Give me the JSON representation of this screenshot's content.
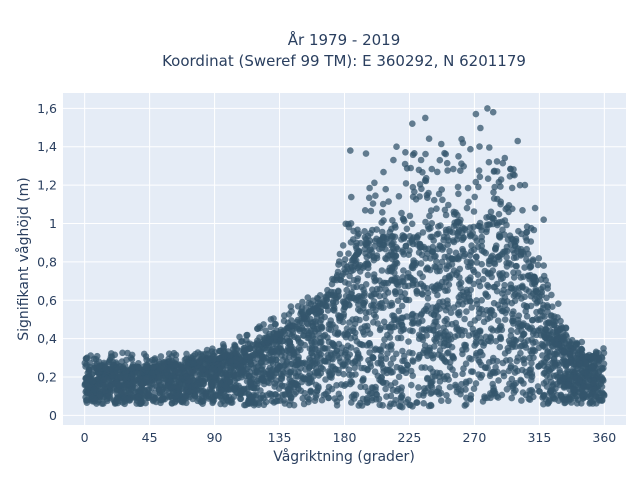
{
  "chart_data": {
    "type": "scatter",
    "title_line1": "År 1979 - 2019",
    "title_line2": "Koordinat (Sweref 99 TM): E 360292, N 6201179",
    "xlabel": "Vågriktning (grader)",
    "ylabel": "Signifikant våghöjd (m)",
    "xlim": [
      -15,
      375
    ],
    "ylim": [
      -0.05,
      1.68
    ],
    "x_ticks": [
      0,
      45,
      90,
      135,
      180,
      225,
      270,
      315,
      360
    ],
    "y_ticks": [
      0,
      0.2,
      0.4,
      0.6,
      0.8,
      1.0,
      1.2,
      1.4,
      1.6
    ],
    "y_tick_labels": [
      "0",
      "0,2",
      "0,4",
      "0,6",
      "0,8",
      "1",
      "1,2",
      "1,4",
      "1,6"
    ],
    "grid": true,
    "marker_color": "#34566c",
    "plot_bg": "#e5ecf6",
    "envelope": {
      "x": [
        0,
        20,
        45,
        60,
        75,
        90,
        105,
        120,
        135,
        150,
        165,
        175,
        180,
        195,
        210,
        225,
        240,
        255,
        270,
        285,
        300,
        310,
        320,
        330,
        340,
        350,
        360
      ],
      "dense_top": [
        0.25,
        0.24,
        0.25,
        0.26,
        0.27,
        0.29,
        0.32,
        0.36,
        0.42,
        0.5,
        0.58,
        0.66,
        0.76,
        0.9,
        0.92,
        0.93,
        0.93,
        0.95,
        0.98,
        1.0,
        0.9,
        0.75,
        0.55,
        0.4,
        0.33,
        0.3,
        0.28
      ],
      "max": [
        0.32,
        0.33,
        0.34,
        0.33,
        0.32,
        0.36,
        0.4,
        0.46,
        0.55,
        0.6,
        0.66,
        0.78,
        1.05,
        1.38,
        1.4,
        1.55,
        1.45,
        1.4,
        1.6,
        1.45,
        1.25,
        1.0,
        0.75,
        0.55,
        0.4,
        0.37,
        0.35
      ],
      "min": [
        0.06,
        0.06,
        0.06,
        0.06,
        0.06,
        0.06,
        0.05,
        0.05,
        0.05,
        0.05,
        0.05,
        0.05,
        0.05,
        0.04,
        0.04,
        0.04,
        0.04,
        0.05,
        0.05,
        0.05,
        0.05,
        0.05,
        0.05,
        0.06,
        0.06,
        0.06,
        0.06
      ]
    },
    "notable_points": [
      {
        "x": 279,
        "y": 1.6
      },
      {
        "x": 283,
        "y": 1.58
      },
      {
        "x": 271,
        "y": 1.57
      },
      {
        "x": 236,
        "y": 1.55
      },
      {
        "x": 227,
        "y": 1.52
      },
      {
        "x": 184,
        "y": 1.38
      },
      {
        "x": 300,
        "y": 1.43
      },
      {
        "x": 262,
        "y": 1.42
      },
      {
        "x": 216,
        "y": 1.4
      },
      {
        "x": 259,
        "y": 1.35
      },
      {
        "x": 246,
        "y": 1.33
      },
      {
        "x": 305,
        "y": 1.2
      },
      {
        "x": 318,
        "y": 1.02
      },
      {
        "x": 312,
        "y": 1.08
      }
    ]
  }
}
